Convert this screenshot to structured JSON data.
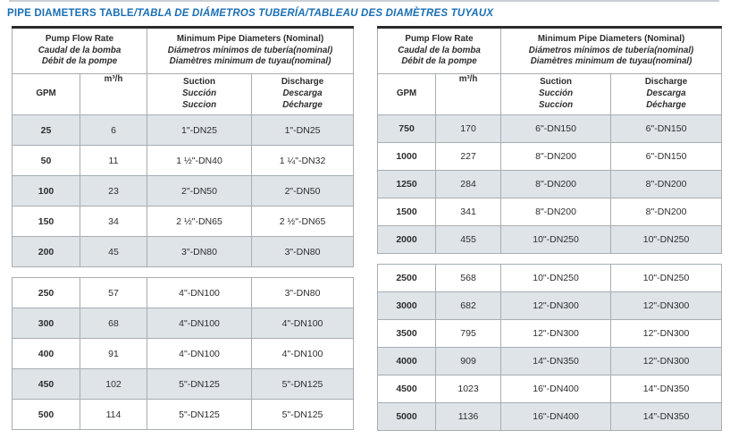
{
  "title": {
    "main": "PIPE DIAMETERS TABLE",
    "translations": "/TABLA DE DIÁMETROS TUBERÍA/TABLEAU DES DIAMÈTRES TUYAUX"
  },
  "header": {
    "flow": [
      "Pump Flow Rate",
      "Caudal de la bomba",
      "Débit de la pompe"
    ],
    "diameters": [
      "Minimum Pipe Diameters (Nominal)",
      "Diámetros mínimos de tubería(nominal)",
      "Diamètres minimum de tuyau(nominal)"
    ],
    "gpm": "GPM",
    "m3h": "m³/h",
    "suction": [
      "Suction",
      "Succión",
      "Succion"
    ],
    "discharge": [
      "Discharge",
      "Descarga",
      "Décharge"
    ]
  },
  "tables": [
    {
      "side": "left",
      "blocks": [
        {
          "rows": [
            {
              "gpm": "25",
              "m3h": "6",
              "suction": "1\"-DN25",
              "discharge": "1\"-DN25"
            },
            {
              "gpm": "50",
              "m3h": "11",
              "suction": "1 ½\"-DN40",
              "discharge": "1 ¼\"-DN32"
            },
            {
              "gpm": "100",
              "m3h": "23",
              "suction": "2\"-DN50",
              "discharge": "2\"-DN50"
            },
            {
              "gpm": "150",
              "m3h": "34",
              "suction": "2 ½\"-DN65",
              "discharge": "2 ½\"-DN65"
            },
            {
              "gpm": "200",
              "m3h": "45",
              "suction": "3\"-DN80",
              "discharge": "3\"-DN80"
            }
          ]
        },
        {
          "rows": [
            {
              "gpm": "250",
              "m3h": "57",
              "suction": "4\"-DN100",
              "discharge": "3\"-DN80"
            },
            {
              "gpm": "300",
              "m3h": "68",
              "suction": "4\"-DN100",
              "discharge": "4\"-DN100"
            },
            {
              "gpm": "400",
              "m3h": "91",
              "suction": "4\"-DN100",
              "discharge": "4\"-DN100"
            },
            {
              "gpm": "450",
              "m3h": "102",
              "suction": "5\"-DN125",
              "discharge": "5\"-DN125"
            },
            {
              "gpm": "500",
              "m3h": "114",
              "suction": "5\"-DN125",
              "discharge": "5\"-DN125"
            }
          ]
        }
      ]
    },
    {
      "side": "right",
      "blocks": [
        {
          "rows": [
            {
              "gpm": "750",
              "m3h": "170",
              "suction": "6\"-DN150",
              "discharge": "6\"-DN150"
            },
            {
              "gpm": "1000",
              "m3h": "227",
              "suction": "8\"-DN200",
              "discharge": "6\"-DN150"
            },
            {
              "gpm": "1250",
              "m3h": "284",
              "suction": "8\"-DN200",
              "discharge": "8\"-DN200"
            },
            {
              "gpm": "1500",
              "m3h": "341",
              "suction": "8\"-DN200",
              "discharge": "8\"-DN200"
            },
            {
              "gpm": "2000",
              "m3h": "455",
              "suction": "10\"-DN250",
              "discharge": "10\"-DN250"
            }
          ]
        },
        {
          "rows": [
            {
              "gpm": "2500",
              "m3h": "568",
              "suction": "10\"-DN250",
              "discharge": "10\"-DN250"
            },
            {
              "gpm": "3000",
              "m3h": "682",
              "suction": "12\"-DN300",
              "discharge": "12\"-DN300"
            },
            {
              "gpm": "3500",
              "m3h": "795",
              "suction": "12\"-DN300",
              "discharge": "12\"-DN300"
            },
            {
              "gpm": "4000",
              "m3h": "909",
              "suction": "14\"-DN350",
              "discharge": "12\"-DN300"
            },
            {
              "gpm": "4500",
              "m3h": "1023",
              "suction": "16\"-DN400",
              "discharge": "14\"-DN350"
            },
            {
              "gpm": "5000",
              "m3h": "1136",
              "suction": "16\"-DN400",
              "discharge": "14\"-DN350"
            }
          ]
        }
      ]
    }
  ],
  "colors": {
    "title_blue": "#1a6fb4",
    "row_shade": "#dfe4e9",
    "border": "#a6adb3",
    "border_top": "#2b2b2b",
    "text": "#2d2d2d"
  }
}
